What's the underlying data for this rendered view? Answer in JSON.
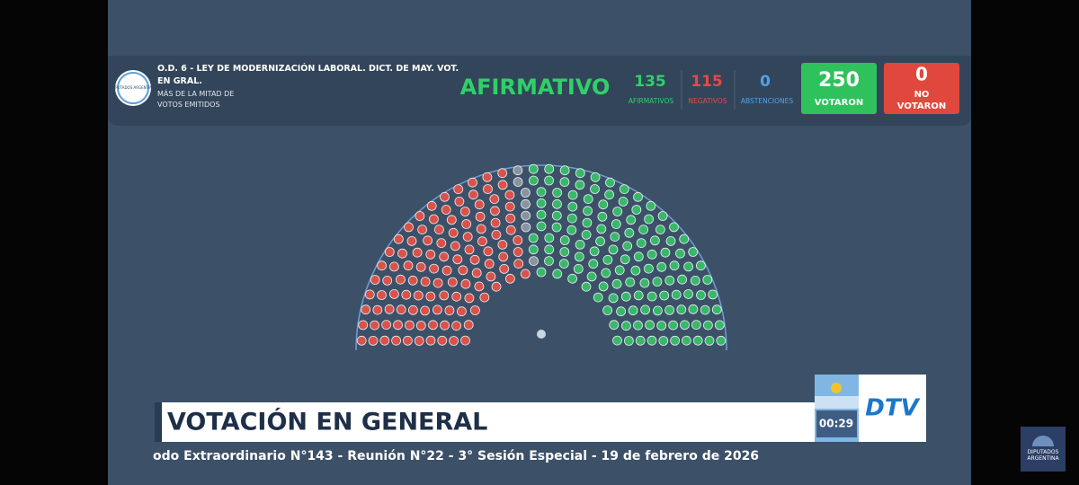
{
  "header": {
    "logo_text": "DIPUTADOS ARGENTINA",
    "title": "O.D. 6 - LEY DE MODERNIZACIÓN LABORAL. DICT. DE MAY. VOT. EN GRAL.",
    "subtitle": "MÁS DE LA MITAD DE VOTOS EMITIDOS",
    "result": "AFIRMATIVO"
  },
  "tally": {
    "afirmativos": {
      "value": 135,
      "label": "AFIRMATIVOS"
    },
    "negativos": {
      "value": 115,
      "label": "NEGATIVOS"
    },
    "abstenciones": {
      "value": 0,
      "label": "ABSTENCIONES"
    },
    "votaron": {
      "value": 250,
      "label": "VOTARON"
    },
    "no_votaron": {
      "value": 0,
      "label": "NO VOTARON"
    }
  },
  "lower_third": {
    "title": "VOTACIÓN EN GENERAL",
    "clock": "00:29",
    "channel": "DTV",
    "ticker": "odo Extraordinario N°143 - Reunión N°22 - 3° Sesión Especial - 19 de febrero de 2026"
  },
  "corner_logo": "DIPUTADOS ARGENTINA"
}
